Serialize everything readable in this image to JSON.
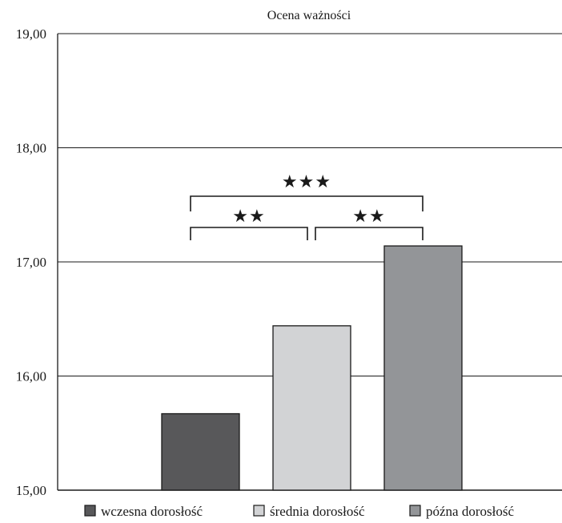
{
  "chart_data": {
    "type": "bar",
    "title": "Ocena ważności",
    "xlabel": "",
    "ylabel": "",
    "ylim": [
      15,
      19
    ],
    "yticks": [
      "15,00",
      "16,00",
      "17,00",
      "18,00",
      "19,00"
    ],
    "ytick_values": [
      15,
      16,
      17,
      18,
      19
    ],
    "grid": true,
    "legend_position": "bottom",
    "categories": [
      "wczesna dorosłość",
      "średnia dorosłość",
      "późna dorosłość"
    ],
    "values": [
      15.67,
      16.44,
      17.14
    ],
    "colors": [
      "#58585a",
      "#d2d3d5",
      "#939598"
    ],
    "significance": [
      {
        "from": 0,
        "to": 1,
        "label": "★★"
      },
      {
        "from": 1,
        "to": 2,
        "label": "★★"
      },
      {
        "from": 0,
        "to": 2,
        "label": "★★★"
      }
    ]
  }
}
